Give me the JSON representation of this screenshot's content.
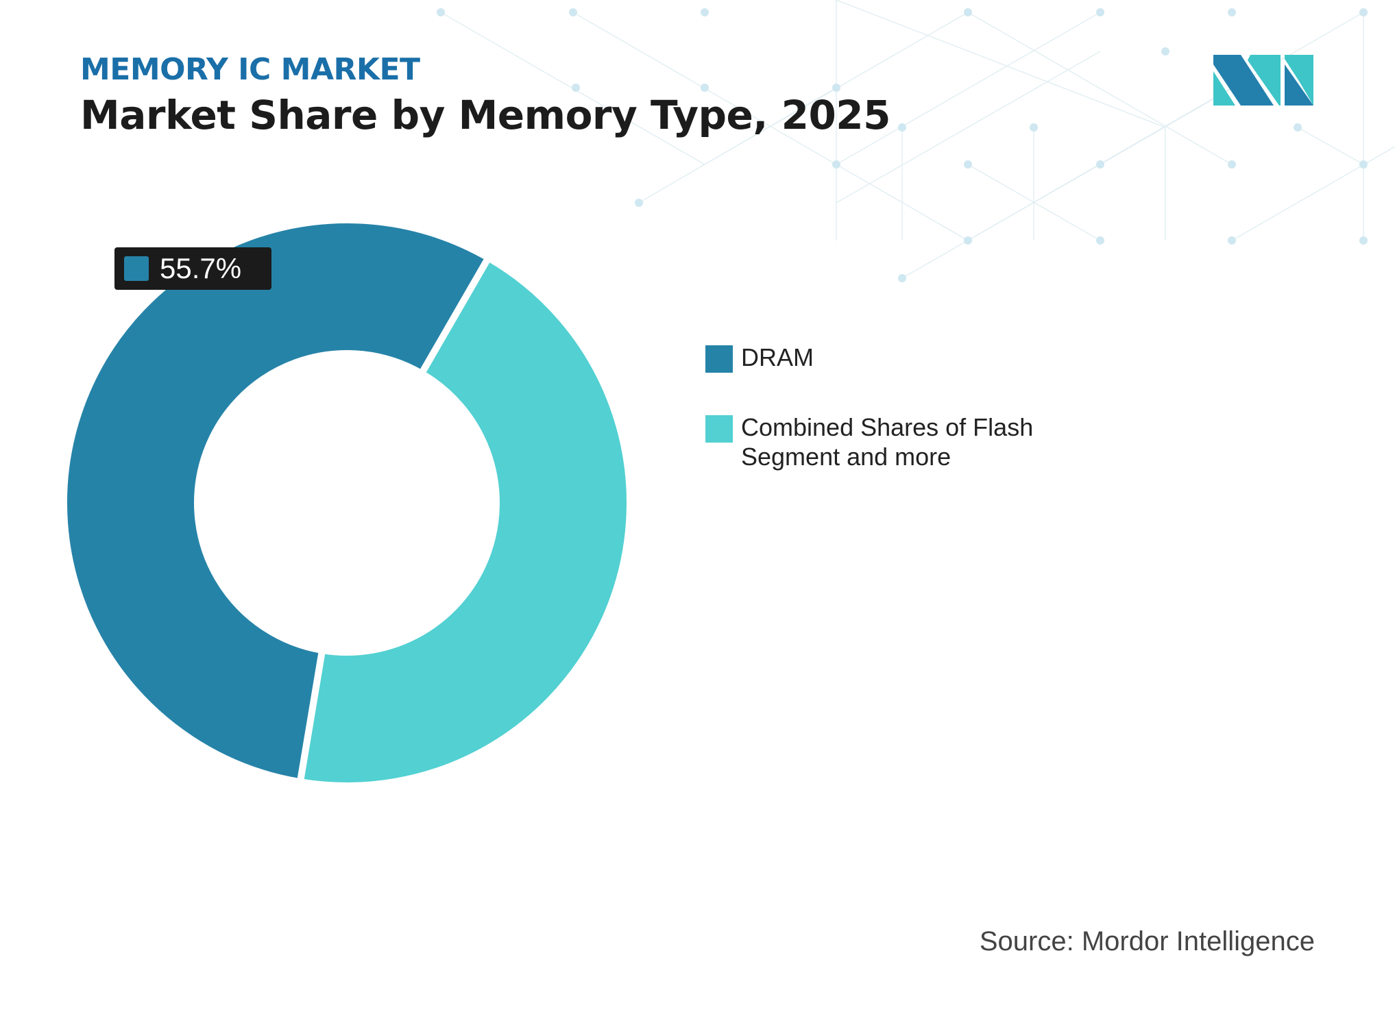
{
  "header": {
    "kicker": "MEMORY IC MARKET",
    "title": "Market Share by Memory Type, 2025"
  },
  "chart_data": {
    "type": "pie",
    "donut": true,
    "categories": [
      "DRAM",
      "Combined Shares of Flash Segment and more"
    ],
    "values": [
      55.7,
      44.3
    ],
    "unit": "%",
    "colors": [
      "#2683a8",
      "#52d0d2"
    ],
    "data_labels": [
      {
        "category": "DRAM",
        "text": "55.7%"
      }
    ],
    "legend_position": "right"
  },
  "footer": {
    "source": "Source: Mordor Intelligence"
  },
  "logo": {
    "text": "MI",
    "colors": [
      "#2380ad",
      "#3ec5c7"
    ]
  }
}
